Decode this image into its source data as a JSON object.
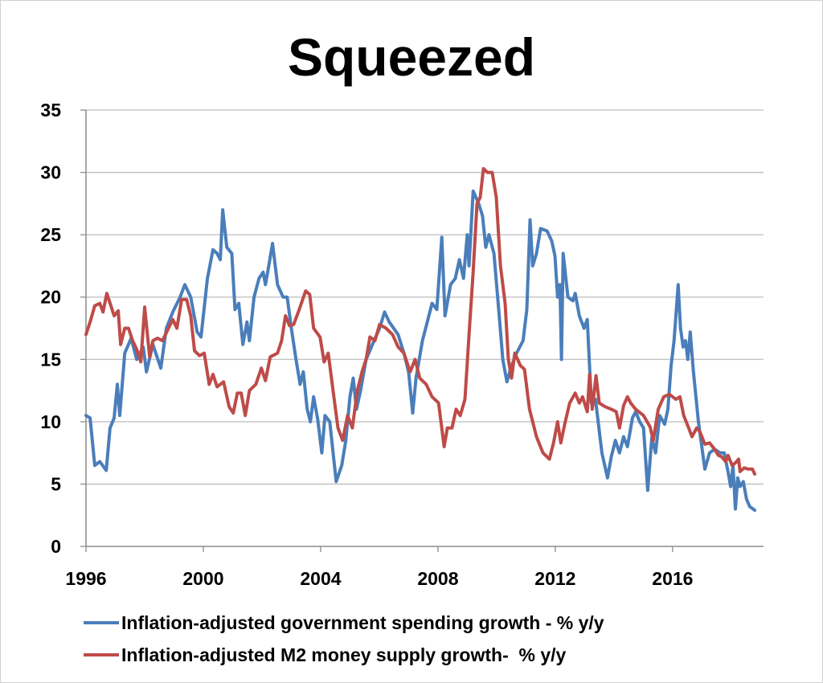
{
  "chart_data": {
    "type": "line",
    "title": "Squeezed",
    "xlabel": "",
    "ylabel": "",
    "xlim": [
      1996,
      2019.1
    ],
    "ylim": [
      0,
      35
    ],
    "xticks": [
      1996,
      2000,
      2004,
      2008,
      2012,
      2016
    ],
    "yticks": [
      0,
      5,
      10,
      15,
      20,
      25,
      30,
      35
    ],
    "grid": true,
    "legend_position": "bottom",
    "series": [
      {
        "name": "Inflation-adjusted government spending growth - % y/y",
        "color": "#4a7ebb",
        "x": [
          1996.0,
          1996.14,
          1996.3,
          1996.47,
          1996.69,
          1996.82,
          1996.96,
          1997.07,
          1997.15,
          1997.32,
          1997.54,
          1997.73,
          1997.95,
          1998.06,
          1998.28,
          1998.55,
          1998.74,
          1998.96,
          1999.21,
          1999.37,
          1999.57,
          1999.79,
          1999.92,
          2000.14,
          2000.33,
          2000.47,
          2000.58,
          2000.66,
          2000.8,
          2000.97,
          2001.08,
          2001.21,
          2001.35,
          2001.49,
          2001.57,
          2001.73,
          2001.9,
          2002.04,
          2002.12,
          2002.23,
          2002.36,
          2002.53,
          2002.72,
          2002.86,
          2003.0,
          2003.16,
          2003.3,
          2003.41,
          2003.54,
          2003.65,
          2003.76,
          2003.9,
          2004.04,
          2004.15,
          2004.31,
          2004.53,
          2004.72,
          2004.86,
          2005.0,
          2005.11,
          2005.22,
          2005.36,
          2005.55,
          2005.82,
          2006.01,
          2006.18,
          2006.34,
          2006.64,
          2006.84,
          2007.0,
          2007.14,
          2007.25,
          2007.47,
          2007.8,
          2007.96,
          2008.13,
          2008.24,
          2008.43,
          2008.59,
          2008.73,
          2008.87,
          2009.0,
          2009.06,
          2009.2,
          2009.39,
          2009.52,
          2009.63,
          2009.74,
          2009.91,
          2010.07,
          2010.21,
          2010.35,
          2010.51,
          2010.68,
          2010.9,
          2011.03,
          2011.14,
          2011.23,
          2011.36,
          2011.5,
          2011.72,
          2011.88,
          2011.99,
          2012.08,
          2012.16,
          2012.21,
          2012.27,
          2012.43,
          2012.6,
          2012.68,
          2012.82,
          2012.98,
          2013.09,
          2013.23,
          2013.37,
          2013.59,
          2013.78,
          2013.91,
          2014.05,
          2014.19,
          2014.33,
          2014.46,
          2014.63,
          2014.74,
          2014.88,
          2015.01,
          2015.15,
          2015.29,
          2015.42,
          2015.56,
          2015.73,
          2015.84,
          2015.95,
          2016.05,
          2016.19,
          2016.27,
          2016.36,
          2016.44,
          2016.52,
          2016.6,
          2016.71,
          2016.88,
          2017.1,
          2017.26,
          2017.43,
          2017.62,
          2017.76,
          2017.89,
          2017.98,
          2018.06,
          2018.14,
          2018.22,
          2018.3,
          2018.41,
          2018.52,
          2018.63,
          2018.8
        ],
        "y": [
          10.5,
          10.3,
          6.5,
          6.8,
          6.1,
          9.5,
          10.3,
          13,
          10.5,
          15.5,
          16.7,
          15,
          16,
          14,
          16.2,
          14.3,
          17.5,
          18.8,
          20,
          21,
          20,
          17.2,
          16.8,
          21.5,
          23.8,
          23.5,
          23,
          27,
          24,
          23.5,
          19,
          19.5,
          16.2,
          18,
          16.5,
          20,
          21.5,
          22,
          21,
          22.5,
          24.3,
          21,
          20,
          20,
          17.5,
          15,
          13,
          14,
          11,
          10,
          12,
          10.2,
          7.5,
          10.5,
          10,
          5.2,
          6.5,
          8.5,
          12,
          13.5,
          11,
          12.5,
          15,
          16.5,
          17.5,
          18.8,
          18,
          17,
          15.5,
          14,
          10.7,
          13.5,
          16.5,
          19.5,
          19,
          24.8,
          18.5,
          21,
          21.5,
          23,
          21.5,
          25,
          22.5,
          28.5,
          27.5,
          26.5,
          24,
          25,
          23.5,
          19,
          15,
          13.2,
          14.5,
          15.5,
          16.5,
          19,
          26.2,
          22.5,
          23.5,
          25.5,
          25.3,
          24.5,
          23.3,
          20,
          21,
          15,
          23.5,
          20,
          19.7,
          20.3,
          18.5,
          17.5,
          18.2,
          11.5,
          11.8,
          7.5,
          5.5,
          7.2,
          8.5,
          7.5,
          8.8,
          8,
          10.3,
          10.8,
          10,
          9.5,
          4.5,
          8.7,
          7.5,
          10.5,
          9.8,
          11,
          14.5,
          16.5,
          21,
          17.5,
          16,
          16.5,
          15,
          17.2,
          14,
          10,
          6.2,
          7.5,
          7.8,
          7.5,
          7.5,
          6,
          4.8,
          6.5,
          3,
          5.5,
          4.8,
          5.2,
          3.8,
          3.2,
          2.9
        ]
      },
      {
        "name": "Inflation-adjusted M2 money supply growth-  % y/y",
        "color": "#be4b48",
        "x": [
          1996.0,
          1996.14,
          1996.3,
          1996.47,
          1996.58,
          1996.71,
          1996.85,
          1996.96,
          1997.1,
          1997.18,
          1997.32,
          1997.45,
          1997.59,
          1997.73,
          1997.87,
          1998.0,
          1998.17,
          1998.28,
          1998.44,
          1998.61,
          1998.77,
          1998.96,
          1999.1,
          1999.26,
          1999.43,
          1999.57,
          1999.7,
          1999.87,
          2000.03,
          2000.2,
          2000.33,
          2000.47,
          2000.69,
          2000.88,
          2001.02,
          2001.16,
          2001.29,
          2001.43,
          2001.57,
          2001.79,
          2001.98,
          2002.12,
          2002.28,
          2002.53,
          2002.67,
          2002.8,
          2002.94,
          2003.08,
          2003.27,
          2003.49,
          2003.63,
          2003.76,
          2003.98,
          2004.12,
          2004.26,
          2004.45,
          2004.59,
          2004.75,
          2004.92,
          2005.08,
          2005.25,
          2005.41,
          2005.55,
          2005.68,
          2005.85,
          2006.01,
          2006.23,
          2006.45,
          2006.64,
          2006.84,
          2007.05,
          2007.22,
          2007.38,
          2007.6,
          2007.8,
          2008.02,
          2008.21,
          2008.32,
          2008.48,
          2008.62,
          2008.76,
          2008.92,
          2009.06,
          2009.2,
          2009.33,
          2009.44,
          2009.55,
          2009.69,
          2009.85,
          2009.99,
          2010.13,
          2010.29,
          2010.4,
          2010.51,
          2010.62,
          2010.81,
          2010.95,
          2011.12,
          2011.23,
          2011.36,
          2011.58,
          2011.8,
          2011.94,
          2012.08,
          2012.19,
          2012.32,
          2012.49,
          2012.68,
          2012.82,
          2012.93,
          2013.09,
          2013.17,
          2013.26,
          2013.39,
          2013.5,
          2013.7,
          2013.91,
          2014.08,
          2014.19,
          2014.33,
          2014.46,
          2014.57,
          2014.74,
          2015.01,
          2015.23,
          2015.34,
          2015.51,
          2015.7,
          2015.89,
          2016.11,
          2016.25,
          2016.38,
          2016.55,
          2016.66,
          2016.82,
          2016.93,
          2017.1,
          2017.26,
          2017.43,
          2017.56,
          2017.67,
          2017.81,
          2017.89,
          2018.03,
          2018.14,
          2018.25,
          2018.3,
          2018.44,
          2018.58,
          2018.72,
          2018.8
        ],
        "y": [
          17,
          18,
          19.3,
          19.5,
          18.8,
          20.3,
          19.3,
          18.5,
          18.9,
          16.2,
          17.5,
          17.5,
          16.5,
          15.8,
          14.8,
          19.2,
          15.2,
          16.5,
          16.7,
          16.5,
          17.3,
          18.2,
          17.5,
          19.8,
          19.8,
          18.5,
          15.7,
          15.3,
          15.5,
          13,
          13.8,
          12.8,
          13.2,
          11.2,
          10.7,
          12.3,
          12.3,
          10.5,
          12.5,
          13,
          14.3,
          13.3,
          15.2,
          15.5,
          16.5,
          18.5,
          17.7,
          17.8,
          19,
          20.5,
          20.2,
          17.5,
          16.8,
          14.8,
          15.5,
          12,
          9.5,
          8.5,
          10.5,
          9.5,
          12.5,
          14,
          15,
          16.8,
          16.5,
          17.8,
          17.5,
          17,
          16,
          15.5,
          14,
          15,
          13.5,
          13,
          12,
          11.5,
          8,
          9.5,
          9.5,
          11,
          10.5,
          11.8,
          17,
          22,
          27.5,
          28,
          30.3,
          30,
          30,
          28,
          22.5,
          19.5,
          15,
          13.5,
          15.5,
          14.5,
          14.2,
          11,
          10,
          8.8,
          7.5,
          7,
          8.3,
          10,
          8.3,
          9.8,
          11.5,
          12.3,
          11.5,
          12,
          10.8,
          13.8,
          11,
          13.7,
          11.5,
          11.2,
          11,
          10.8,
          9.5,
          11.3,
          12,
          11.5,
          11,
          10.5,
          9.6,
          8.5,
          11,
          12,
          12.2,
          11.8,
          12,
          10.5,
          9.5,
          8.8,
          9.5,
          9.2,
          8.2,
          8.3,
          7.8,
          7.3,
          7.2,
          6.8,
          7.3,
          6.5,
          6.7,
          7,
          6,
          6.3,
          6.2,
          6.2,
          5.8
        ]
      }
    ]
  }
}
